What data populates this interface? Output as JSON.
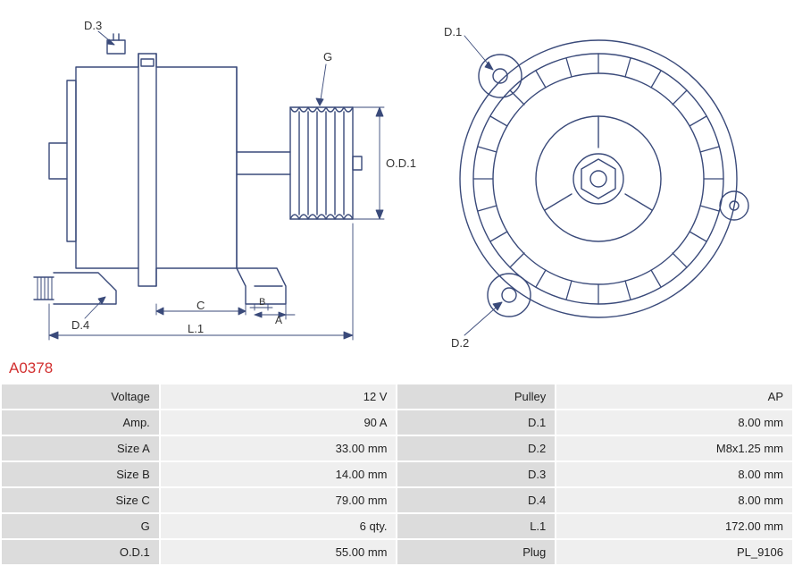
{
  "part_code": "A0378",
  "diagram": {
    "stroke_color": "#3a4a7a",
    "stroke_width": 1.5,
    "label_font_size": 13,
    "label_color": "#333333",
    "labels": {
      "d3": "D.3",
      "d4": "D.4",
      "d1": "D.1",
      "d2": "D.2",
      "g": "G",
      "od1": "O.D.1",
      "c": "C",
      "a": "A",
      "b": "B",
      "l1": "L.1"
    }
  },
  "spec_rows": [
    {
      "l1": "Voltage",
      "v1": "12 V",
      "l2": "Pulley",
      "v2": "AP"
    },
    {
      "l1": "Amp.",
      "v1": "90 A",
      "l2": "D.1",
      "v2": "8.00 mm"
    },
    {
      "l1": "Size A",
      "v1": "33.00 mm",
      "l2": "D.2",
      "v2": "M8x1.25 mm"
    },
    {
      "l1": "Size B",
      "v1": "14.00 mm",
      "l2": "D.3",
      "v2": "8.00 mm"
    },
    {
      "l1": "Size C",
      "v1": "79.00 mm",
      "l2": "D.4",
      "v2": "8.00 mm"
    },
    {
      "l1": "G",
      "v1": "6 qty.",
      "l2": "L.1",
      "v2": "172.00 mm"
    },
    {
      "l1": "O.D.1",
      "v1": "55.00 mm",
      "l2": "Plug",
      "v2": "PL_9106"
    }
  ],
  "table_style": {
    "label_bg": "#dcdcdc",
    "value_bg": "#efefef",
    "font_size": 13,
    "text_color": "#222222"
  }
}
